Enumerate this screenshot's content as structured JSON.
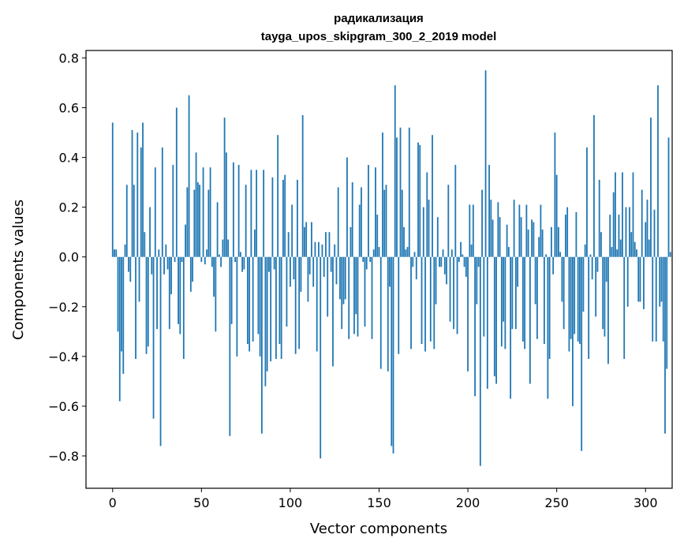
{
  "chart_data": {
    "type": "bar",
    "title_line1": "радикализация",
    "title_line2": "tayga_upos_skipgram_300_2_2019 model",
    "xlabel": "Vector components",
    "ylabel": "Components values",
    "xlim": [
      -15,
      315
    ],
    "ylim": [
      -0.93,
      0.83
    ],
    "xticks": [
      0,
      50,
      100,
      150,
      200,
      250,
      300
    ],
    "xtick_labels": [
      "0",
      "50",
      "100",
      "150",
      "200",
      "250",
      "300"
    ],
    "yticks": [
      -0.8,
      -0.6,
      -0.4,
      -0.2,
      0.0,
      0.2,
      0.4,
      0.6,
      0.8
    ],
    "ytick_labels": [
      "−0.8",
      "−0.6",
      "−0.4",
      "−0.2",
      "0.0",
      "0.2",
      "0.4",
      "0.6",
      "0.8"
    ],
    "bar_color": "#1f77b4",
    "values": [
      0.54,
      0.03,
      0.03,
      -0.3,
      -0.58,
      -0.38,
      -0.47,
      0.05,
      0.29,
      -0.06,
      -0.1,
      0.51,
      0.29,
      -0.41,
      0.5,
      -0.18,
      0.44,
      0.54,
      0.1,
      -0.39,
      -0.36,
      0.2,
      -0.07,
      -0.65,
      0.36,
      -0.29,
      0.03,
      -0.76,
      0.44,
      -0.07,
      0.05,
      -0.05,
      -0.29,
      -0.15,
      0.37,
      -0.02,
      0.6,
      -0.27,
      -0.31,
      -0.02,
      -0.41,
      0.13,
      0.28,
      0.65,
      -0.14,
      -0.1,
      0.27,
      0.42,
      0.3,
      0.29,
      -0.02,
      0.36,
      -0.03,
      0.03,
      0.27,
      0.36,
      -0.04,
      -0.16,
      -0.3,
      0.22,
      0.01,
      -0.04,
      0.07,
      0.56,
      0.42,
      0.07,
      -0.72,
      -0.27,
      0.38,
      -0.02,
      -0.4,
      0.37,
      0.02,
      -0.06,
      -0.05,
      0.29,
      -0.35,
      -0.38,
      0.35,
      -0.34,
      0.11,
      0.35,
      -0.31,
      -0.4,
      -0.71,
      0.35,
      -0.52,
      -0.46,
      -0.06,
      -0.42,
      0.32,
      -0.05,
      -0.41,
      0.49,
      -0.35,
      -0.41,
      0.31,
      0.33,
      -0.28,
      0.1,
      -0.12,
      0.21,
      -0.09,
      -0.39,
      0.31,
      -0.37,
      -0.14,
      0.57,
      0.12,
      0.14,
      -0.18,
      -0.07,
      0.14,
      -0.12,
      0.06,
      -0.38,
      0.06,
      -0.81,
      0.05,
      -0.08,
      0.1,
      -0.24,
      0.1,
      -0.06,
      -0.44,
      0.05,
      -0.11,
      0.28,
      -0.17,
      -0.29,
      -0.19,
      -0.17,
      0.4,
      -0.33,
      0.12,
      0.3,
      -0.31,
      -0.23,
      -0.32,
      0.21,
      0.28,
      -0.02,
      -0.28,
      -0.05,
      0.37,
      -0.02,
      -0.33,
      0.03,
      0.36,
      0.17,
      0.04,
      -0.45,
      0.5,
      0.27,
      0.29,
      -0.46,
      -0.12,
      -0.76,
      -0.79,
      0.69,
      0.48,
      -0.39,
      0.52,
      0.27,
      0.12,
      0.03,
      0.04,
      0.52,
      -0.37,
      -0.04,
      0.02,
      -0.09,
      0.46,
      0.45,
      -0.35,
      0.2,
      -0.38,
      0.34,
      0.23,
      -0.34,
      0.49,
      -0.37,
      -0.19,
      0.16,
      -0.04,
      -0.04,
      0.03,
      -0.07,
      -0.11,
      0.29,
      -0.26,
      0.03,
      -0.29,
      0.37,
      -0.31,
      -0.02,
      0.06,
      0.01,
      -0.04,
      -0.08,
      -0.46,
      0.21,
      0.05,
      0.21,
      -0.56,
      -0.19,
      -0.04,
      -0.84,
      0.27,
      -0.32,
      0.75,
      -0.53,
      0.37,
      0.23,
      0.15,
      -0.48,
      -0.51,
      0.22,
      0.16,
      -0.36,
      -0.26,
      -0.37,
      0.13,
      0.04,
      -0.57,
      -0.29,
      0.23,
      -0.29,
      -0.12,
      0.21,
      0.16,
      -0.34,
      -0.37,
      0.21,
      0.11,
      -0.51,
      0.15,
      0.14,
      -0.19,
      -0.33,
      0.08,
      0.21,
      0.11,
      -0.35,
      0.01,
      -0.57,
      -0.41,
      0.12,
      -0.07,
      0.5,
      0.33,
      0.12,
      0.02,
      -0.18,
      -0.29,
      0.17,
      0.2,
      -0.38,
      -0.33,
      -0.6,
      -0.31,
      0.18,
      -0.34,
      -0.35,
      -0.78,
      -0.22,
      0.05,
      0.44,
      -0.41,
      0.01,
      -0.09,
      0.57,
      -0.24,
      -0.06,
      0.31,
      0.1,
      -0.29,
      -0.32,
      -0.1,
      -0.43,
      0.17,
      0.04,
      0.26,
      0.34,
      0.03,
      0.17,
      0.07,
      0.34,
      -0.41,
      0.2,
      -0.2,
      0.2,
      0.1,
      0.34,
      0.06,
      0.03,
      -0.18,
      -0.18,
      0.27,
      -0.21,
      0.14,
      0.23,
      0.07,
      0.56,
      -0.34,
      0.19,
      -0.34,
      0.69,
      -0.2,
      -0.18,
      -0.34,
      -0.71,
      -0.45,
      0.48,
      0.02
    ]
  }
}
